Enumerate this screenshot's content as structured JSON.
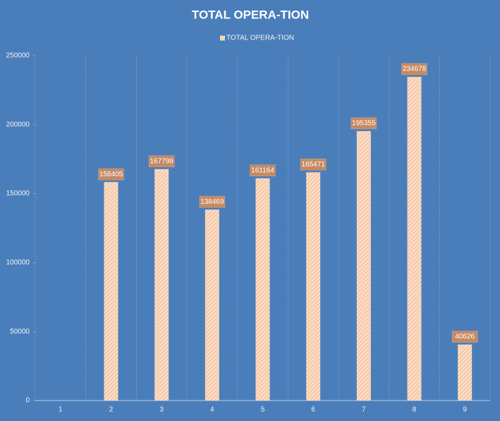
{
  "chart_data": {
    "type": "bar",
    "title": "TOTAL OPERA-TION",
    "categories": [
      "1",
      "2",
      "3",
      "4",
      "5",
      "6",
      "7",
      "8",
      "9"
    ],
    "series": [
      {
        "name": "TOTAL OPERA-TION",
        "color": "#fbdcc4",
        "values": [
          null,
          158405,
          167799,
          138469,
          161164,
          165471,
          195355,
          234678,
          40626
        ]
      }
    ],
    "ylim": [
      0,
      250000
    ],
    "yticks": [
      0,
      50000,
      100000,
      150000,
      200000,
      250000
    ],
    "legend": "top"
  }
}
